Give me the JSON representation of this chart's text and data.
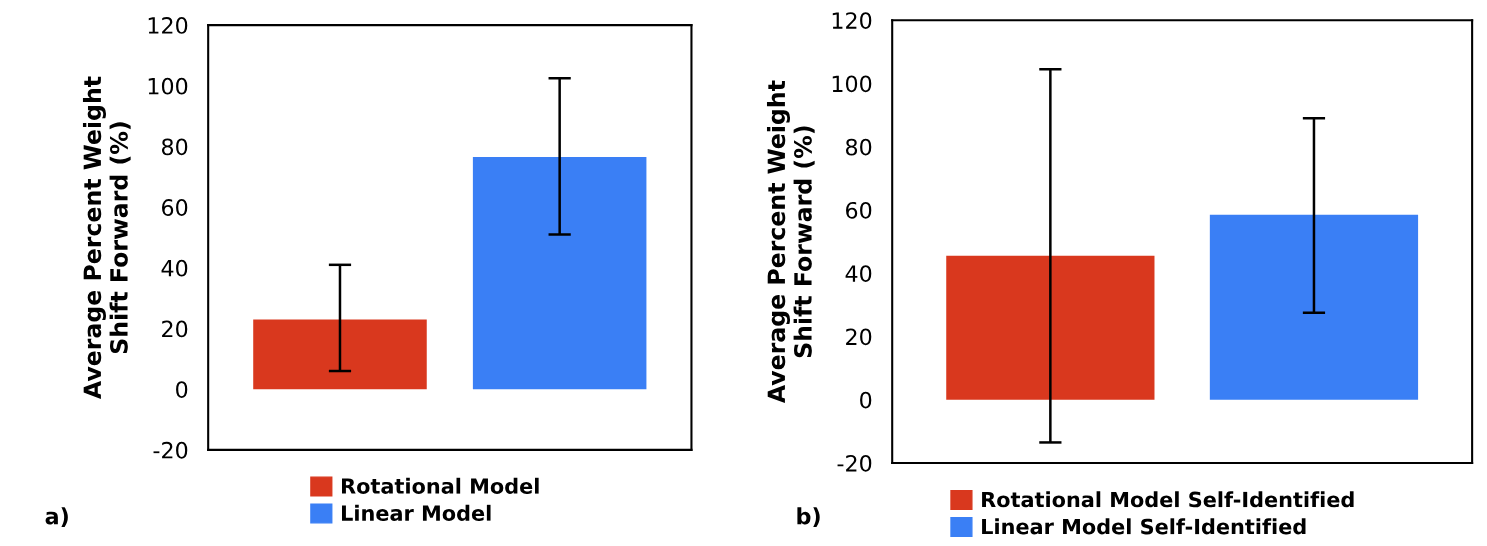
{
  "chart_data": [
    {
      "type": "bar",
      "ylabel": "Average Percent Weight\nShift Forward (%)",
      "categories": [
        null,
        null
      ],
      "series": [
        {
          "name": "Rotational Model",
          "color": "#d9381e",
          "values": [
            23,
            null
          ],
          "errors": [
            [
              6,
              41
            ],
            null
          ]
        },
        {
          "name": "Linear Model",
          "color": "#3a7ff5",
          "values": [
            null,
            76.5
          ],
          "errors": [
            null,
            [
              51,
              102.5
            ]
          ]
        }
      ],
      "ylim": [
        -20,
        120
      ],
      "yticks": [
        -20,
        0,
        20,
        40,
        60,
        80,
        100,
        120
      ],
      "grid": false,
      "legend": "bottom",
      "annotations": [
        "a)"
      ]
    },
    {
      "type": "bar",
      "ylabel": "Average Percent Weight\nShift Forward (%)",
      "categories": [
        null,
        null
      ],
      "series": [
        {
          "name": "Rotational Model Self-Identified",
          "color": "#d9381e",
          "values": [
            45.5,
            null
          ],
          "errors": [
            [
              -13.5,
              104.5
            ],
            null
          ]
        },
        {
          "name": "Linear Model Self-Identified",
          "color": "#3a7ff5",
          "values": [
            null,
            58.5
          ],
          "errors": [
            null,
            [
              27.5,
              89
            ]
          ]
        }
      ],
      "ylim": [
        -20,
        120
      ],
      "yticks": [
        -20,
        0,
        20,
        40,
        60,
        80,
        100,
        120
      ],
      "grid": false,
      "legend": "bottom",
      "annotations": [
        "b)"
      ]
    }
  ]
}
